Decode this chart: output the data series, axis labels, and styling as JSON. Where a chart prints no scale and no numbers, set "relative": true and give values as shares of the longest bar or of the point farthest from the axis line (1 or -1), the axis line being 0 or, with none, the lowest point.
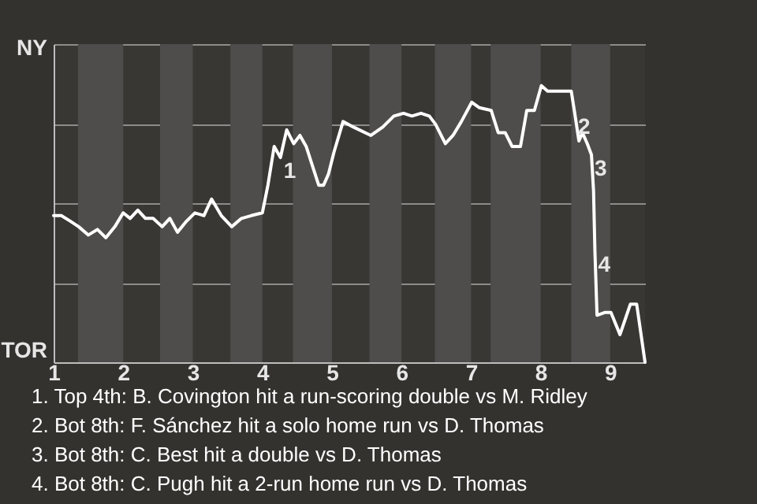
{
  "chart_data": {
    "type": "line",
    "relative": true,
    "x": [
      1,
      1.11,
      1.24,
      1.36,
      1.5,
      1.63,
      1.75,
      1.88,
      2,
      2.1,
      2.21,
      2.32,
      2.43,
      2.56,
      2.67,
      2.78,
      2.91,
      3.03,
      3.16,
      3.27,
      3.41,
      3.56,
      3.7,
      3.84,
      4,
      4.08,
      4.17,
      4.26,
      4.35,
      4.45,
      4.54,
      4.63,
      4.72,
      4.81,
      4.88,
      4.95,
      5.03,
      5.16,
      5.31,
      5.56,
      5.73,
      5.89,
      6.03,
      6.15,
      6.28,
      6.4,
      6.49,
      6.63,
      6.74,
      6.86,
      7.01,
      7.12,
      7.29,
      7.39,
      7.49,
      7.59,
      7.71,
      7.8,
      7.91,
      8.01,
      8.1,
      8.2,
      8.3,
      8.44,
      8.49,
      8.55,
      8.6,
      8.67,
      8.73,
      8.76,
      8.78,
      8.81,
      8.92,
      9.01,
      9.14,
      9.29,
      9.38,
      9.5
    ],
    "series": [
      {
        "color": "#ffffff",
        "values": [
          0.53,
          0.53,
          0.51,
          0.49,
          0.46,
          0.48,
          0.45,
          0.49,
          0.54,
          0.52,
          0.55,
          0.52,
          0.52,
          0.49,
          0.52,
          0.47,
          0.51,
          0.54,
          0.53,
          0.59,
          0.53,
          0.49,
          0.52,
          0.53,
          0.54,
          0.64,
          0.78,
          0.74,
          0.84,
          0.79,
          0.82,
          0.78,
          0.71,
          0.64,
          0.64,
          0.68,
          0.76,
          0.87,
          0.85,
          0.82,
          0.85,
          0.89,
          0.9,
          0.89,
          0.9,
          0.89,
          0.86,
          0.79,
          0.82,
          0.87,
          0.94,
          0.92,
          0.91,
          0.83,
          0.83,
          0.78,
          0.78,
          0.91,
          0.91,
          1,
          0.98,
          0.98,
          0.98,
          0.98,
          0.9,
          0.8,
          0.83,
          0.79,
          0.75,
          0.62,
          0.4,
          0.17,
          0.18,
          0.18,
          0.1,
          0.21,
          0.21,
          0
        ]
      }
    ],
    "xlim": [
      1,
      9.5
    ],
    "xticks": [
      1,
      2,
      3,
      4,
      5,
      6,
      7,
      8,
      9
    ],
    "grid": "y",
    "marker": "none",
    "line_style": "solid",
    "bands": [
      {
        "axis": "x",
        "from": 1.35,
        "to": 2,
        "color": "#4e4d4b"
      },
      {
        "axis": "x",
        "from": 2.53,
        "to": 3,
        "color": "#4e4d4b"
      },
      {
        "axis": "x",
        "from": 3.54,
        "to": 4,
        "color": "#4e4d4b"
      },
      {
        "axis": "x",
        "from": 4.44,
        "to": 5,
        "color": "#4e4d4b"
      },
      {
        "axis": "x",
        "from": 5.54,
        "to": 6,
        "color": "#4e4d4b"
      },
      {
        "axis": "x",
        "from": 6.48,
        "to": 7,
        "color": "#4e4d4b"
      },
      {
        "axis": "x",
        "from": 7.28,
        "to": 8,
        "color": "#4e4d4b"
      },
      {
        "axis": "x",
        "from": 8.44,
        "to": 9,
        "color": "#4e4d4b"
      }
    ],
    "annotations": [
      "NY",
      "TOR",
      {
        "text": "1",
        "x": 4.26,
        "y": 0.74
      },
      {
        "text": "2",
        "x": 8.49,
        "y": 0.9
      },
      {
        "text": "3",
        "x": 8.73,
        "y": 0.75
      },
      {
        "text": "4",
        "x": 8.78,
        "y": 0.4
      },
      "1. Top 4th: B. Covington hit a run-scoring double vs M. Ridley",
      "2. Bot 8th: F. Sánchez hit a solo home run vs D. Thomas",
      "3. Bot 8th: C. Best hit a double vs D. Thomas",
      "4. Bot 8th: C. Pugh hit a 2-run home run vs D. Thomas"
    ]
  }
}
